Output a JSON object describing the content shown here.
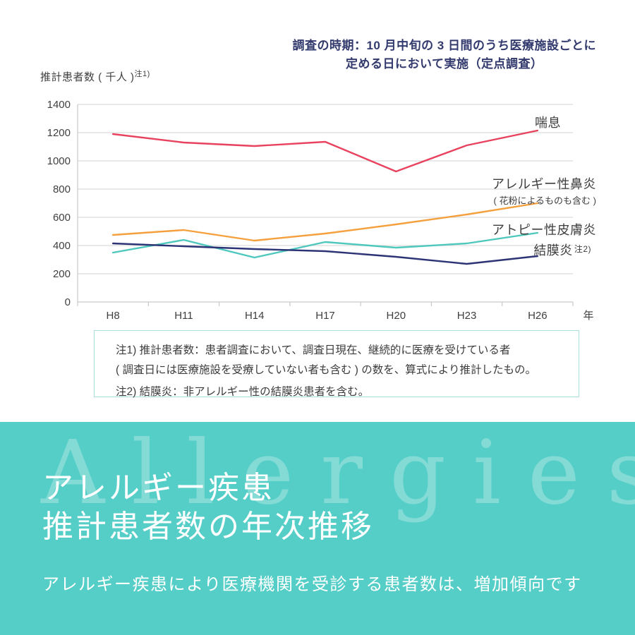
{
  "survey_note": {
    "line1": "調査の時期：10 月中旬の 3 日間のうち医療施設ごとに",
    "line2": "定める日において実施（定点調査）"
  },
  "chart_data": {
    "type": "line",
    "title": "",
    "ylabel": "推計患者数 ( 千人 )",
    "ylabel_note": "注1)",
    "xlabel": "年",
    "categories": [
      "H8",
      "H11",
      "H14",
      "H17",
      "H20",
      "H23",
      "H26"
    ],
    "series": [
      {
        "id": "asthma",
        "label": "喘息",
        "color": "#e9425f",
        "values": [
          1190,
          1130,
          1105,
          1135,
          925,
          1110,
          1215
        ]
      },
      {
        "id": "allergic-rhinitis",
        "label": "アレルギー性鼻炎",
        "sublabel": "( 花粉によるものも含む )",
        "color": "#f5a03e",
        "values": [
          475,
          510,
          435,
          485,
          550,
          620,
          700
        ]
      },
      {
        "id": "atopic-dermatitis",
        "label": "アトピー性皮膚炎",
        "color": "#4ec7bd",
        "values": [
          350,
          440,
          315,
          425,
          385,
          415,
          490
        ]
      },
      {
        "id": "conjunctivitis",
        "label": "結膜炎",
        "label_note": "注2)",
        "color": "#2c3476",
        "values": [
          415,
          395,
          375,
          360,
          320,
          270,
          325
        ]
      }
    ],
    "ylim": [
      0,
      1400
    ],
    "y_ticks": [
      0,
      200,
      400,
      600,
      800,
      1000,
      1200,
      1400
    ],
    "grid": true,
    "legend_position": "right-of-line-ends",
    "colors": {
      "grid": "#dcdcdc",
      "axis": "#c9c9c9",
      "tick_text": "#3f3f3f"
    }
  },
  "notes": {
    "line1": "注1) 推計患者数：患者調査において、調査日現在、継続的に医療を受けている者",
    "line2": "( 調査日には医療施設を受療していない者も含む ) の数を、算式により推計したもの。",
    "line3": "注2) 結膜炎：非アレルギー性の結膜炎患者を含む。"
  },
  "footer": {
    "watermark": "Allergies",
    "title_line1": "アレルギー疾患",
    "title_line2": "推計患者数の年次推移",
    "subtitle": "アレルギー疾患により医療機関を受診する患者数は、増加傾向です",
    "background": "#55cec7"
  }
}
